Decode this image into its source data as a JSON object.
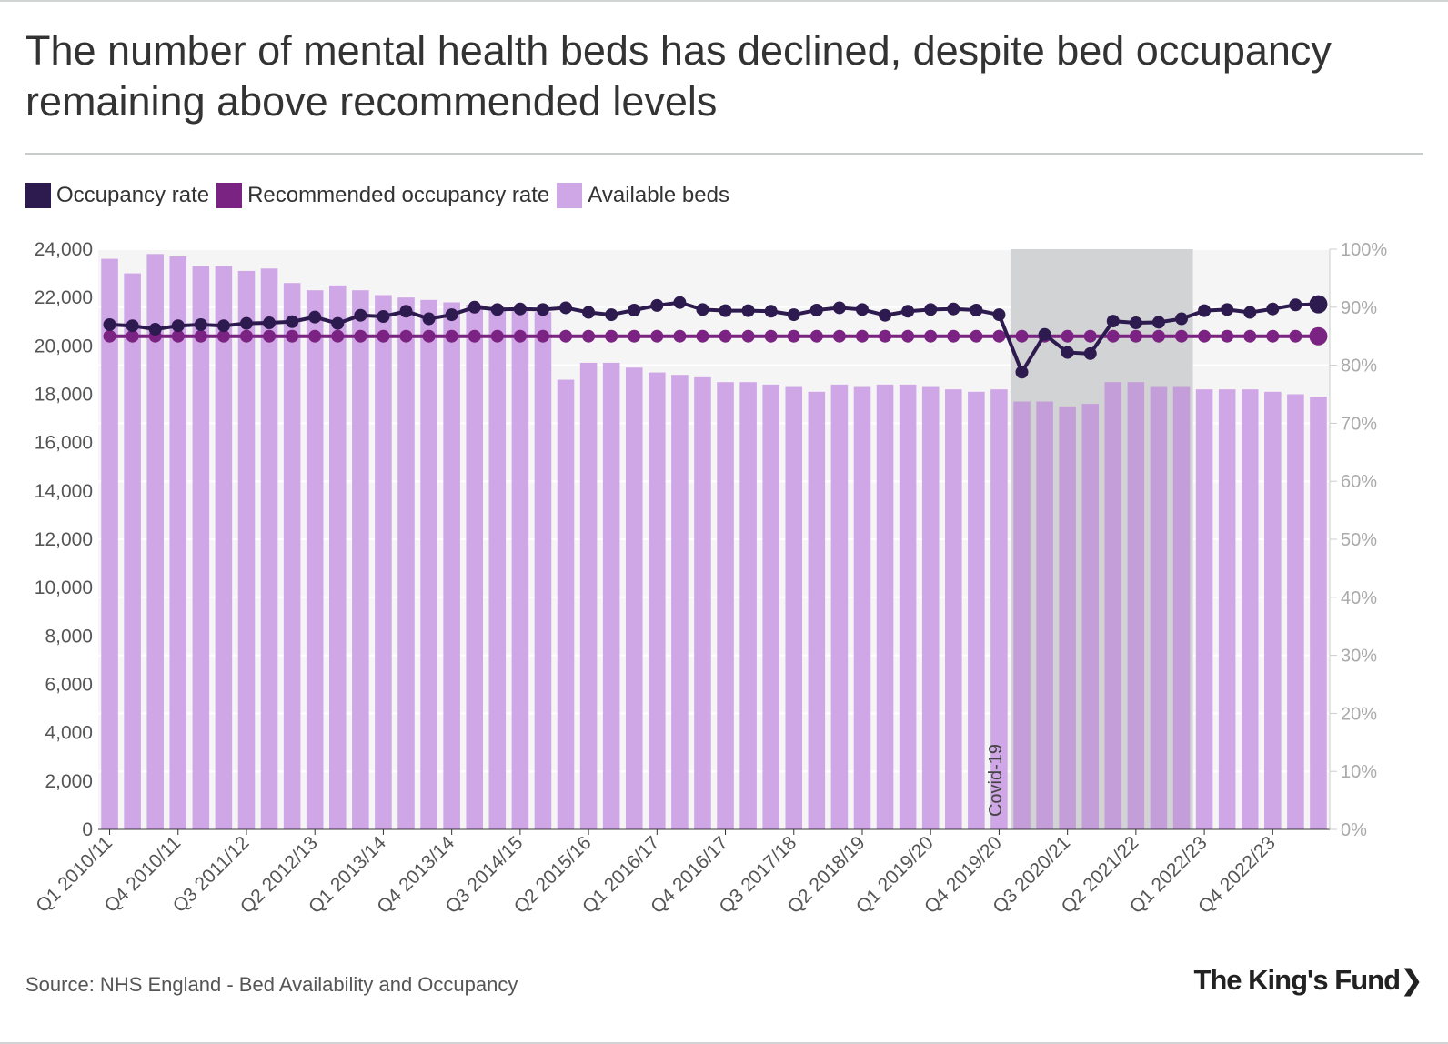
{
  "title": "The number of mental health beds has declined, despite bed occupancy remaining above recommended levels",
  "legend": [
    {
      "label": "Occupancy rate",
      "color": "#2d1a4f"
    },
    {
      "label": "Recommended occupancy rate",
      "color": "#7b2382"
    },
    {
      "label": "Available beds",
      "color": "#cfa6e6"
    }
  ],
  "source": "Source: NHS England - Bed Availability and Occupancy",
  "logo": "The King's Fund",
  "logo_chevron": "❯",
  "chart_data": {
    "type": "bar",
    "categories": [
      "Q1 2010/11",
      "Q2 2010/11",
      "Q3 2010/11",
      "Q4 2010/11",
      "Q1 2011/12",
      "Q2 2011/12",
      "Q3 2011/12",
      "Q4 2011/12",
      "Q1 2012/13",
      "Q2 2012/13",
      "Q3 2012/13",
      "Q4 2012/13",
      "Q1 2013/14",
      "Q2 2013/14",
      "Q3 2013/14",
      "Q4 2013/14",
      "Q1 2014/15",
      "Q2 2014/15",
      "Q3 2014/15",
      "Q4 2014/15",
      "Q1 2015/16",
      "Q2 2015/16",
      "Q3 2015/16",
      "Q4 2015/16",
      "Q1 2016/17",
      "Q2 2016/17",
      "Q3 2016/17",
      "Q4 2016/17",
      "Q1 2017/18",
      "Q2 2017/18",
      "Q3 2017/18",
      "Q4 2017/18",
      "Q1 2018/19",
      "Q2 2018/19",
      "Q3 2018/19",
      "Q4 2018/19",
      "Q1 2019/20",
      "Q2 2019/20",
      "Q3 2019/20",
      "Q4 2019/20",
      "Q1 2020/21",
      "Q2 2020/21",
      "Q3 2020/21",
      "Q4 2020/21",
      "Q1 2021/22",
      "Q2 2021/22",
      "Q3 2021/22",
      "Q4 2021/22",
      "Q1 2022/23",
      "Q2 2022/23",
      "Q3 2022/23",
      "Q4 2022/23",
      "Q1 2023/24",
      "Q2 2023/24"
    ],
    "tick_labels": [
      "Q1 2010/11",
      "Q4 2010/11",
      "Q3 2011/12",
      "Q2 2012/13",
      "Q1 2013/14",
      "Q4 2013/14",
      "Q3 2014/15",
      "Q2 2015/16",
      "Q1 2016/17",
      "Q4 2016/17",
      "Q3 2017/18",
      "Q2 2018/19",
      "Q1 2019/20",
      "Q4 2019/20",
      "Q3 2020/21",
      "Q2 2021/22",
      "Q1 2022/23",
      "Q4 2022/23"
    ],
    "tick_indices": [
      0,
      3,
      6,
      9,
      12,
      15,
      18,
      21,
      24,
      27,
      30,
      33,
      36,
      39,
      42,
      45,
      48,
      51
    ],
    "series": [
      {
        "name": "Available beds",
        "axis": "left",
        "kind": "bar",
        "values": [
          23600,
          23000,
          23800,
          23700,
          23300,
          23300,
          23100,
          23200,
          22600,
          22300,
          22500,
          22300,
          22100,
          22000,
          21900,
          21800,
          21700,
          21600,
          21500,
          21400,
          18600,
          19300,
          19300,
          19100,
          18900,
          18800,
          18700,
          18500,
          18500,
          18400,
          18300,
          18100,
          18400,
          18300,
          18400,
          18400,
          18300,
          18200,
          18100,
          18200,
          17700,
          17700,
          17500,
          17600,
          18500,
          18500,
          18300,
          18300,
          18200,
          18200,
          18200,
          18100,
          18000,
          17900
        ]
      },
      {
        "name": "Occupancy rate",
        "axis": "right",
        "kind": "line",
        "values": [
          87.0,
          86.8,
          86.2,
          86.8,
          87.0,
          86.8,
          87.2,
          87.3,
          87.5,
          88.3,
          87.2,
          88.6,
          88.4,
          89.3,
          88.0,
          88.7,
          90.0,
          89.6,
          89.7,
          89.6,
          89.9,
          89.1,
          88.7,
          89.5,
          90.3,
          90.8,
          89.6,
          89.4,
          89.4,
          89.3,
          88.7,
          89.5,
          89.9,
          89.6,
          88.6,
          89.3,
          89.6,
          89.7,
          89.5,
          88.7,
          78.8,
          85.3,
          82.2,
          82.0,
          87.6,
          87.3,
          87.4,
          88.0,
          89.4,
          89.6,
          89.1,
          89.7,
          90.4,
          90.5
        ]
      },
      {
        "name": "Recommended occupancy rate",
        "axis": "right",
        "kind": "line",
        "values": [
          85,
          85,
          85,
          85,
          85,
          85,
          85,
          85,
          85,
          85,
          85,
          85,
          85,
          85,
          85,
          85,
          85,
          85,
          85,
          85,
          85,
          85,
          85,
          85,
          85,
          85,
          85,
          85,
          85,
          85,
          85,
          85,
          85,
          85,
          85,
          85,
          85,
          85,
          85,
          85,
          85,
          85,
          85,
          85,
          85,
          85,
          85,
          85,
          85,
          85,
          85,
          85,
          85,
          85
        ]
      }
    ],
    "ylim": [
      0,
      24000
    ],
    "yticks": [
      "0",
      "2,000",
      "4,000",
      "6,000",
      "8,000",
      "10,000",
      "12,000",
      "14,000",
      "16,000",
      "18,000",
      "20,000",
      "22,000",
      "24,000"
    ],
    "y2lim": [
      0,
      100
    ],
    "y2ticks": [
      "0%",
      "10%",
      "20%",
      "30%",
      "40%",
      "50%",
      "60%",
      "70%",
      "80%",
      "90%",
      "100%"
    ],
    "annotation": {
      "label": "Covid-19",
      "start_index": 40,
      "end_index": 47
    }
  }
}
